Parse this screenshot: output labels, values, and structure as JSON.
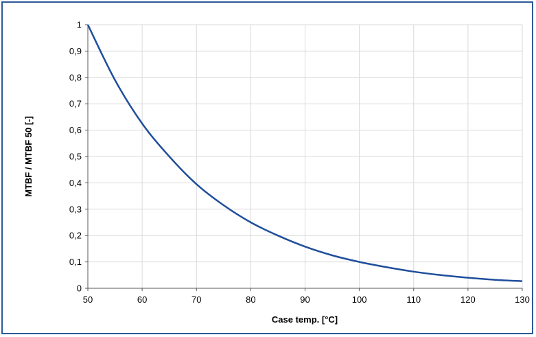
{
  "chart_data": {
    "type": "line",
    "xlabel": "Case temp. [°C]",
    "ylabel": "MTBF / MTBF 50 [-]",
    "xlim": [
      50,
      130
    ],
    "ylim": [
      0,
      1
    ],
    "x_ticks": [
      "50",
      "60",
      "70",
      "80",
      "90",
      "100",
      "110",
      "120",
      "130"
    ],
    "y_ticks": [
      "0",
      "0,1",
      "0,2",
      "0,3",
      "0,4",
      "0,5",
      "0,6",
      "0,7",
      "0,8",
      "0,9",
      "1"
    ],
    "grid": true,
    "legend": "none",
    "line_color": "#1f4e9c",
    "series": [
      {
        "x": [
          50,
          55,
          60,
          65,
          70,
          75,
          80,
          85,
          90,
          95,
          100,
          105,
          110,
          115,
          120,
          125,
          130
        ],
        "values": [
          1.0,
          0.79,
          0.625,
          0.5,
          0.395,
          0.315,
          0.25,
          0.2,
          0.158,
          0.125,
          0.1,
          0.08,
          0.063,
          0.05,
          0.04,
          0.032,
          0.027
        ]
      }
    ]
  }
}
